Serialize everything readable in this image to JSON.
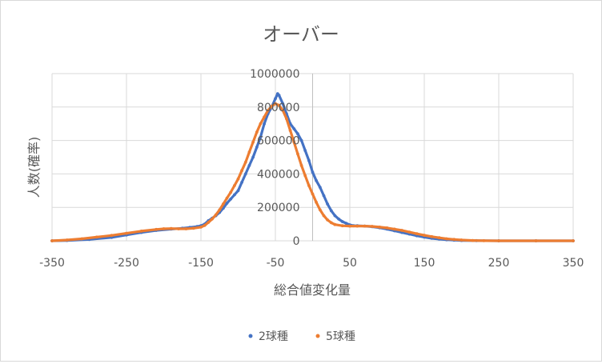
{
  "chart_data": {
    "type": "scatter",
    "title": "オーバー",
    "xlabel": "総合値変化量",
    "ylabel": "人数(確率)",
    "xlim": [
      -350,
      350
    ],
    "ylim": [
      0,
      1000000
    ],
    "x_ticks": [
      -350,
      -250,
      -150,
      -50,
      50,
      150,
      250,
      350
    ],
    "y_ticks": [
      0,
      200000,
      400000,
      600000,
      800000,
      1000000
    ],
    "grid": true,
    "legend_position": "bottom",
    "series": [
      {
        "name": "2球種",
        "color": "#4472C4",
        "points": [
          [
            -350,
            0
          ],
          [
            -330,
            2000
          ],
          [
            -300,
            8000
          ],
          [
            -270,
            20000
          ],
          [
            -250,
            35000
          ],
          [
            -230,
            50000
          ],
          [
            -210,
            62000
          ],
          [
            -190,
            70000
          ],
          [
            -175,
            75000
          ],
          [
            -165,
            80000
          ],
          [
            -155,
            85000
          ],
          [
            -150,
            90000
          ],
          [
            -145,
            100000
          ],
          [
            -140,
            120000
          ],
          [
            -135,
            135000
          ],
          [
            -130,
            150000
          ],
          [
            -125,
            170000
          ],
          [
            -120,
            195000
          ],
          [
            -115,
            225000
          ],
          [
            -110,
            250000
          ],
          [
            -105,
            275000
          ],
          [
            -100,
            300000
          ],
          [
            -95,
            350000
          ],
          [
            -90,
            400000
          ],
          [
            -85,
            450000
          ],
          [
            -80,
            500000
          ],
          [
            -75,
            560000
          ],
          [
            -70,
            620000
          ],
          [
            -65,
            700000
          ],
          [
            -60,
            760000
          ],
          [
            -55,
            800000
          ],
          [
            -50,
            850000
          ],
          [
            -47,
            880000
          ],
          [
            -45,
            870000
          ],
          [
            -40,
            820000
          ],
          [
            -35,
            760000
          ],
          [
            -30,
            700000
          ],
          [
            -25,
            670000
          ],
          [
            -20,
            640000
          ],
          [
            -15,
            600000
          ],
          [
            -10,
            540000
          ],
          [
            -5,
            480000
          ],
          [
            0,
            410000
          ],
          [
            5,
            360000
          ],
          [
            10,
            320000
          ],
          [
            15,
            270000
          ],
          [
            20,
            220000
          ],
          [
            25,
            180000
          ],
          [
            30,
            150000
          ],
          [
            35,
            130000
          ],
          [
            40,
            115000
          ],
          [
            45,
            105000
          ],
          [
            50,
            95000
          ],
          [
            55,
            90000
          ],
          [
            60,
            90000
          ],
          [
            70,
            88000
          ],
          [
            80,
            84000
          ],
          [
            90,
            78000
          ],
          [
            100,
            70000
          ],
          [
            110,
            60000
          ],
          [
            120,
            50000
          ],
          [
            130,
            40000
          ],
          [
            140,
            30000
          ],
          [
            150,
            22000
          ],
          [
            160,
            15000
          ],
          [
            170,
            10000
          ],
          [
            180,
            6000
          ],
          [
            190,
            4000
          ],
          [
            200,
            2000
          ],
          [
            220,
            1000
          ],
          [
            250,
            0
          ],
          [
            300,
            0
          ],
          [
            350,
            0
          ]
        ]
      },
      {
        "name": "5球種",
        "color": "#ED7D31",
        "points": [
          [
            -350,
            0
          ],
          [
            -330,
            5000
          ],
          [
            -310,
            12000
          ],
          [
            -290,
            22000
          ],
          [
            -270,
            32000
          ],
          [
            -250,
            45000
          ],
          [
            -230,
            58000
          ],
          [
            -210,
            68000
          ],
          [
            -200,
            72000
          ],
          [
            -190,
            73000
          ],
          [
            -180,
            72000
          ],
          [
            -170,
            72000
          ],
          [
            -160,
            75000
          ],
          [
            -150,
            82000
          ],
          [
            -145,
            92000
          ],
          [
            -140,
            110000
          ],
          [
            -135,
            130000
          ],
          [
            -130,
            155000
          ],
          [
            -125,
            185000
          ],
          [
            -120,
            220000
          ],
          [
            -115,
            255000
          ],
          [
            -110,
            290000
          ],
          [
            -105,
            330000
          ],
          [
            -100,
            370000
          ],
          [
            -95,
            420000
          ],
          [
            -90,
            470000
          ],
          [
            -85,
            530000
          ],
          [
            -80,
            590000
          ],
          [
            -75,
            650000
          ],
          [
            -70,
            700000
          ],
          [
            -65,
            740000
          ],
          [
            -60,
            780000
          ],
          [
            -55,
            805000
          ],
          [
            -50,
            820000
          ],
          [
            -45,
            810000
          ],
          [
            -40,
            780000
          ],
          [
            -35,
            730000
          ],
          [
            -30,
            660000
          ],
          [
            -25,
            590000
          ],
          [
            -20,
            520000
          ],
          [
            -15,
            450000
          ],
          [
            -10,
            390000
          ],
          [
            -5,
            330000
          ],
          [
            0,
            280000
          ],
          [
            5,
            230000
          ],
          [
            10,
            185000
          ],
          [
            15,
            150000
          ],
          [
            20,
            125000
          ],
          [
            25,
            108000
          ],
          [
            30,
            97000
          ],
          [
            40,
            90000
          ],
          [
            50,
            88000
          ],
          [
            60,
            88000
          ],
          [
            70,
            88000
          ],
          [
            80,
            86000
          ],
          [
            90,
            82000
          ],
          [
            100,
            77000
          ],
          [
            110,
            70000
          ],
          [
            120,
            62000
          ],
          [
            130,
            52000
          ],
          [
            140,
            42000
          ],
          [
            150,
            33000
          ],
          [
            160,
            25000
          ],
          [
            170,
            18000
          ],
          [
            180,
            12000
          ],
          [
            190,
            8000
          ],
          [
            200,
            5000
          ],
          [
            215,
            2000
          ],
          [
            230,
            500
          ],
          [
            250,
            0
          ],
          [
            300,
            0
          ],
          [
            350,
            0
          ]
        ]
      }
    ]
  }
}
